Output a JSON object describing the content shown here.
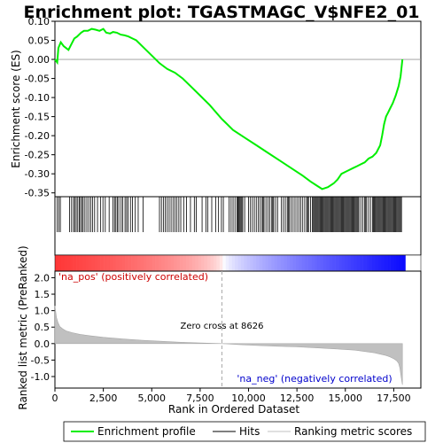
{
  "chart_data": {
    "type": "line",
    "title": "Enrichment plot: TGASTMAGC_V$NFE2_01",
    "panels": [
      {
        "id": "enrichment",
        "ylabel": "Enrichment score (ES)",
        "ylim": [
          -0.36,
          0.1
        ],
        "yticks": [
          0.1,
          0.05,
          0.0,
          -0.05,
          -0.1,
          -0.15,
          -0.2,
          -0.25,
          -0.3,
          -0.35
        ],
        "ytick_labels": [
          "0.10",
          "0.05",
          "0.00",
          "-0.05",
          "-0.10",
          "-0.15",
          "-0.20",
          "-0.25",
          "-0.30",
          "-0.35"
        ],
        "grid": false,
        "zero_line": true
      },
      {
        "id": "ranked",
        "ylabel": "Ranked list metric (PreRanked)",
        "xlabel": "Rank in Ordered Dataset",
        "ylim": [
          -1.35,
          2.2
        ],
        "yticks": [
          2.0,
          1.5,
          1.0,
          0.5,
          0.0,
          -0.5,
          -1.0
        ],
        "ytick_labels": [
          "2.0",
          "1.5",
          "1.0",
          "0.5",
          "0.0",
          "-0.5",
          "-1.0"
        ],
        "xlim": [
          0,
          18900
        ],
        "xticks": [
          0,
          2500,
          5000,
          7500,
          10000,
          12500,
          15000,
          17500
        ],
        "xtick_labels": [
          "0",
          "2,500",
          "5,000",
          "7,500",
          "10,000",
          "12,500",
          "15,000",
          "17,500"
        ],
        "zero_cross_rank": 8626,
        "zero_cross_label": "Zero cross at 8626",
        "pos_label": "'na_pos' (positively correlated)",
        "neg_label": "'na_neg' (negatively correlated)"
      }
    ],
    "series": [
      {
        "name": "Enrichment profile",
        "color": "#00ee00",
        "x": [
          0,
          120,
          180,
          300,
          450,
          700,
          850,
          1000,
          1150,
          1350,
          1500,
          1700,
          1900,
          2100,
          2300,
          2500,
          2650,
          2850,
          3000,
          3200,
          3400,
          3600,
          3800,
          4000,
          4200,
          4600,
          5000,
          5400,
          5800,
          6200,
          6600,
          7000,
          7500,
          8000,
          8600,
          9200,
          9800,
          10400,
          11000,
          11600,
          12200,
          12800,
          13200,
          13500,
          13800,
          14100,
          14400,
          14600,
          14800,
          15000,
          15200,
          15400,
          15600,
          15800,
          16000,
          16200,
          16400,
          16600,
          16800,
          16900,
          17000,
          17100,
          17200,
          17300,
          17450,
          17600,
          17750,
          17850,
          17950
        ],
        "values": [
          0.0,
          -0.008,
          0.03,
          0.045,
          0.035,
          0.025,
          0.04,
          0.055,
          0.06,
          0.07,
          0.075,
          0.075,
          0.08,
          0.078,
          0.075,
          0.08,
          0.07,
          0.068,
          0.072,
          0.07,
          0.065,
          0.063,
          0.06,
          0.055,
          0.05,
          0.03,
          0.01,
          -0.01,
          -0.025,
          -0.035,
          -0.05,
          -0.07,
          -0.095,
          -0.12,
          -0.155,
          -0.185,
          -0.205,
          -0.225,
          -0.245,
          -0.265,
          -0.285,
          -0.305,
          -0.32,
          -0.33,
          -0.34,
          -0.335,
          -0.325,
          -0.315,
          -0.3,
          -0.295,
          -0.29,
          -0.285,
          -0.28,
          -0.275,
          -0.27,
          -0.26,
          -0.255,
          -0.245,
          -0.225,
          -0.2,
          -0.17,
          -0.15,
          -0.14,
          -0.13,
          -0.115,
          -0.095,
          -0.07,
          -0.045,
          0.0
        ]
      },
      {
        "name": "Hits",
        "color": "#000000",
        "x": [
          120,
          200,
          280,
          760,
          860,
          960,
          1020,
          1100,
          1180,
          1260,
          1320,
          1400,
          1460,
          1550,
          1650,
          1750,
          1850,
          1950,
          2050,
          2200,
          2350,
          2480,
          2600,
          2800,
          3000,
          3080,
          3150,
          3230,
          3300,
          3420,
          3500,
          3620,
          3700,
          3780,
          3900,
          4000,
          4150,
          4300,
          4550,
          5400,
          5500,
          5600,
          5700,
          5800,
          5900,
          6000,
          6100,
          6200,
          6300,
          6400,
          6500,
          6650,
          6800,
          7000,
          7200,
          7300,
          7600,
          7800,
          7900,
          8100,
          8300,
          8450,
          8600,
          8700,
          9000,
          9100,
          9200,
          9300,
          9400,
          9450,
          9500,
          9550,
          9600,
          9650,
          9700,
          9800,
          10000,
          10100,
          10200,
          10300,
          10400,
          10500,
          10600,
          10700,
          10750,
          10800,
          10900,
          11000,
          11100,
          11200,
          11250,
          11300,
          11400,
          11500,
          11700,
          11800,
          11900,
          12000,
          12050,
          12100,
          12200,
          12300,
          12400,
          12500,
          12600,
          12700,
          12800,
          12900,
          13000,
          13050,
          13100,
          13200,
          13300,
          13350,
          13400,
          13450,
          13500,
          13550,
          13600,
          13650,
          13700,
          13750,
          13800,
          13850,
          13900,
          13950,
          14000,
          14050,
          14100,
          14150,
          14200,
          14250,
          14300,
          14350,
          14400,
          14450,
          14500,
          14550,
          14600,
          14650,
          14700,
          14750,
          14800,
          14850,
          14900,
          14950,
          15000,
          15050,
          15100,
          15150,
          15200,
          15250,
          15300,
          15350,
          15400,
          15450,
          15500,
          15550,
          15600,
          15650,
          15700,
          15800,
          15900,
          16000,
          16050,
          16100,
          16200,
          16300,
          16400,
          16450,
          16500,
          16550,
          16600,
          16650,
          16700,
          16750,
          16800,
          16850,
          16900,
          16950,
          17000,
          17050,
          17100,
          17150,
          17200,
          17250,
          17300,
          17350,
          17400,
          17450,
          17500,
          17550,
          17600,
          17650,
          17700,
          17750,
          17800,
          17850,
          17900
        ]
      },
      {
        "name": "Ranking metric scores",
        "color": "#c0c0c0",
        "x": [
          0,
          30,
          80,
          150,
          250,
          400,
          600,
          900,
          1300,
          1800,
          2500,
          3500,
          4500,
          5500,
          6500,
          7500,
          8626,
          9500,
          10500,
          11500,
          12500,
          13500,
          14500,
          15500,
          16000,
          16500,
          16800,
          17100,
          17300,
          17500,
          17650,
          17750,
          17820,
          17880,
          17950
        ],
        "values": [
          1.15,
          1.0,
          0.8,
          0.65,
          0.52,
          0.45,
          0.38,
          0.33,
          0.28,
          0.24,
          0.19,
          0.14,
          0.1,
          0.07,
          0.04,
          0.02,
          0.0,
          -0.03,
          -0.06,
          -0.08,
          -0.1,
          -0.13,
          -0.16,
          -0.2,
          -0.24,
          -0.28,
          -0.32,
          -0.36,
          -0.4,
          -0.46,
          -0.52,
          -0.6,
          -0.75,
          -1.0,
          -1.25
        ]
      }
    ],
    "legend": {
      "placement": "bottom",
      "entries": [
        "Enrichment profile",
        "Hits",
        "Ranking metric scores"
      ]
    }
  }
}
